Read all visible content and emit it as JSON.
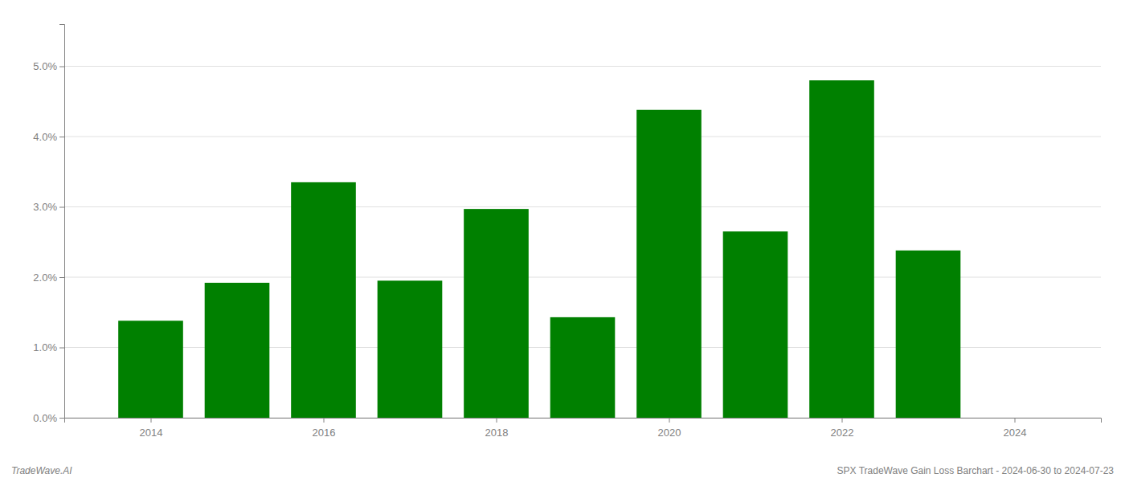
{
  "chart_data": {
    "type": "bar",
    "title": "SPX TradeWave Gain Loss Barchart - 2024-06-30 to 2024-07-23",
    "annotations": [
      "TradeWave.AI"
    ],
    "x": [
      2014,
      2015,
      2016,
      2017,
      2018,
      2019,
      2020,
      2021,
      2022,
      2023
    ],
    "values": [
      0.0138,
      0.0192,
      0.0335,
      0.0195,
      0.0297,
      0.0143,
      0.0438,
      0.0265,
      0.048,
      0.0238
    ],
    "color": "#008000",
    "xlim": [
      2013.0,
      2025.0
    ],
    "xticks": [
      2014,
      2016,
      2018,
      2020,
      2022,
      2024
    ],
    "ylim": [
      0,
      0.056
    ],
    "yticks": [
      {
        "value": 0.0,
        "label": "0.0%"
      },
      {
        "value": 0.01,
        "label": "1.0%"
      },
      {
        "value": 0.02,
        "label": "2.0%"
      },
      {
        "value": 0.03,
        "label": "3.0%"
      },
      {
        "value": 0.04,
        "label": "4.0%"
      },
      {
        "value": 0.05,
        "label": "5.0%"
      }
    ],
    "grid": true
  }
}
